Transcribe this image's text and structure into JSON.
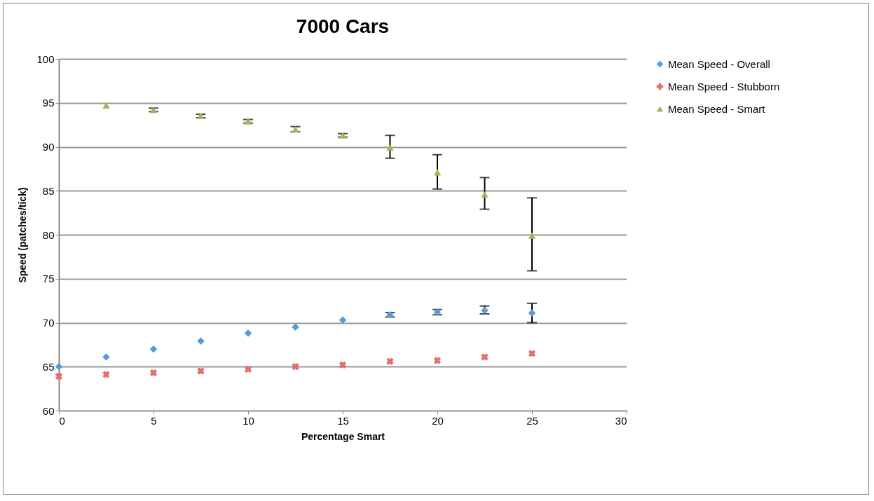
{
  "chart_data": {
    "type": "scatter",
    "title": "7000 Cars",
    "xlabel": "Percentage Smart",
    "ylabel": "Speed (patches/tick)",
    "xlim": [
      0,
      30
    ],
    "xticks": [
      0,
      5,
      10,
      15,
      20,
      25,
      30
    ],
    "ylim": [
      60,
      100
    ],
    "yticks": [
      60,
      65,
      70,
      75,
      80,
      85,
      90,
      95,
      100
    ],
    "grid": "y",
    "legend": "right",
    "series": [
      {
        "name": "Mean Speed - Overall",
        "color": "#5b9bd5",
        "marker": "diamond",
        "x": [
          0,
          2.5,
          5,
          7.5,
          10,
          12.5,
          15,
          17.5,
          20,
          22.5,
          25
        ],
        "values": [
          65.0,
          66.1,
          67.0,
          67.9,
          68.8,
          69.5,
          70.3,
          70.9,
          71.2,
          71.4,
          71.1
        ],
        "errors": [
          null,
          null,
          null,
          null,
          null,
          null,
          null,
          0.25,
          [
            70.9,
            71.5
          ],
          [
            71.0,
            71.9
          ],
          [
            70.0,
            72.2
          ]
        ]
      },
      {
        "name": "Mean Speed - Stubborn",
        "color": "#e0706c",
        "marker": "cross",
        "x": [
          0,
          2.5,
          5,
          7.5,
          10,
          12.5,
          15,
          17.5,
          20,
          22.5,
          25
        ],
        "values": [
          63.9,
          64.1,
          64.3,
          64.5,
          64.7,
          65.0,
          65.2,
          65.6,
          65.7,
          66.1,
          66.5
        ],
        "errors": [
          null,
          null,
          null,
          null,
          null,
          null,
          null,
          null,
          null,
          null,
          null
        ]
      },
      {
        "name": "Mean Speed - Smart",
        "color": "#9bbb59",
        "marker": "triangle",
        "x": [
          2.5,
          5,
          7.5,
          10,
          12.5,
          15,
          17.5,
          20,
          22.5,
          25
        ],
        "values": [
          94.7,
          94.2,
          93.5,
          92.9,
          92.0,
          91.3,
          89.9,
          87.1,
          84.6,
          79.9
        ],
        "errors": [
          null,
          0.2,
          0.2,
          0.2,
          0.3,
          0.2,
          [
            88.7,
            91.3
          ],
          [
            85.2,
            89.1
          ],
          [
            82.9,
            86.5
          ],
          [
            75.9,
            84.2
          ]
        ]
      }
    ]
  }
}
